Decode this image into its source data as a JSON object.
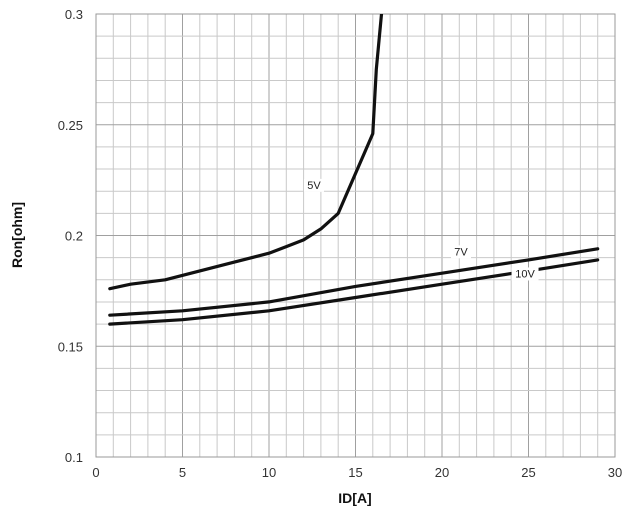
{
  "chart_data": {
    "type": "line",
    "xlabel": "ID[A]",
    "ylabel": "Ron[ohm]",
    "xlim": [
      0,
      30
    ],
    "ylim": [
      0.1,
      0.3
    ],
    "grid": true,
    "x_ticks": [
      0,
      5,
      10,
      15,
      20,
      25,
      30
    ],
    "y_ticks": [
      0.1,
      0.15,
      0.2,
      0.25,
      0.3
    ],
    "x_tick_labels": [
      "0",
      "5",
      "10",
      "15",
      "20",
      "25",
      "30"
    ],
    "y_tick_labels": [
      "0.1",
      "0.15",
      "0.2",
      "0.25",
      "0.3"
    ],
    "series": [
      {
        "name": "5V",
        "x": [
          0.8,
          2,
          4,
          6,
          8,
          10,
          11,
          12,
          13,
          14,
          15,
          15.5,
          16,
          16.2,
          16.5
        ],
        "y": [
          0.176,
          0.178,
          0.18,
          0.184,
          0.188,
          0.192,
          0.195,
          0.198,
          0.203,
          0.21,
          0.228,
          0.237,
          0.246,
          0.275,
          0.3
        ]
      },
      {
        "name": "7V",
        "x": [
          0.8,
          5,
          10,
          15,
          20,
          25,
          29
        ],
        "y": [
          0.164,
          0.166,
          0.17,
          0.177,
          0.183,
          0.189,
          0.194
        ]
      },
      {
        "name": "10V",
        "x": [
          0.8,
          5,
          10,
          15,
          20,
          25,
          29
        ],
        "y": [
          0.16,
          0.162,
          0.166,
          0.172,
          0.178,
          0.184,
          0.189
        ]
      }
    ]
  }
}
